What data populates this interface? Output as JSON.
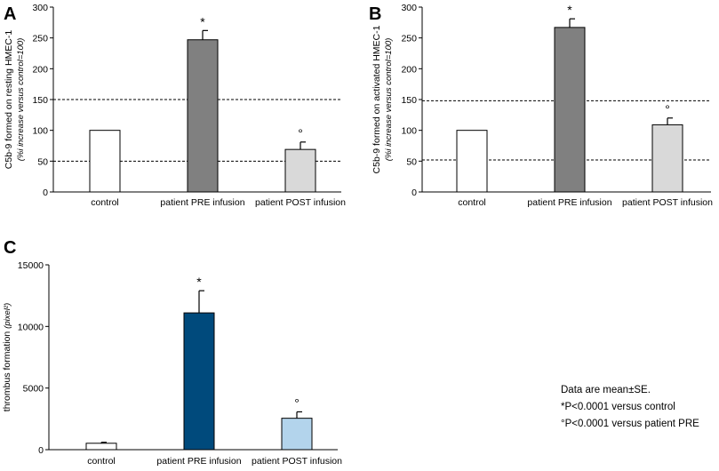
{
  "chart_data": [
    {
      "panel": "A",
      "type": "bar",
      "categories": [
        "control",
        "patient PRE infusion",
        "patient POST infusion"
      ],
      "values": [
        100,
        247,
        69
      ],
      "errors": [
        0,
        15,
        12
      ],
      "markers": [
        "",
        "*",
        "°"
      ],
      "bar_colors": [
        "#ffffff",
        "#808080",
        "#d9d9d9"
      ],
      "ylabel": "C5b-9 formed on resting HMEC-1",
      "ylabel_sub": "(%i increase versus control=100)",
      "ylim": [
        0,
        300
      ],
      "yticks": [
        "0",
        "50",
        "100",
        "150",
        "200",
        "250",
        "300"
      ],
      "yticks_values": [
        0,
        50,
        100,
        150,
        200,
        250,
        300
      ],
      "reference_lines": [
        50,
        150
      ]
    },
    {
      "panel": "B",
      "type": "bar",
      "categories": [
        "control",
        "patient PRE infusion",
        "patient POST infusion"
      ],
      "values": [
        100,
        267,
        109
      ],
      "errors": [
        0,
        14,
        11
      ],
      "markers": [
        "",
        "*",
        "°"
      ],
      "bar_colors": [
        "#ffffff",
        "#808080",
        "#d9d9d9"
      ],
      "ylabel": "C5b-9 formed on activated HMEC-1",
      "ylabel_sub": "(%i increase versus control=100)",
      "ylim": [
        0,
        300
      ],
      "yticks": [
        "0",
        "50",
        "100",
        "150",
        "200",
        "250",
        "300"
      ],
      "yticks_values": [
        0,
        50,
        100,
        150,
        200,
        250,
        300
      ],
      "reference_lines": [
        52,
        148
      ]
    },
    {
      "panel": "C",
      "type": "bar",
      "categories": [
        "control",
        "patient PRE infusion",
        "patient POST infusion"
      ],
      "values": [
        520,
        11100,
        2550
      ],
      "errors": [
        80,
        1800,
        520
      ],
      "markers": [
        "",
        "*",
        "°"
      ],
      "bar_colors": [
        "#ffffff",
        "#004a7c",
        "#b3d4ec"
      ],
      "ylabel": "thrombus formation",
      "ylabel_sub": "(pixel²)",
      "ylim": [
        0,
        15000
      ],
      "yticks": [
        "0",
        "5000",
        "10000",
        "15000"
      ],
      "yticks_values": [
        0,
        5000,
        10000,
        15000
      ],
      "reference_lines": []
    }
  ],
  "notes": [
    "Data are mean±SE.",
    "*P<0.0001 versus control",
    "°P<0.0001 versus patient PRE"
  ]
}
